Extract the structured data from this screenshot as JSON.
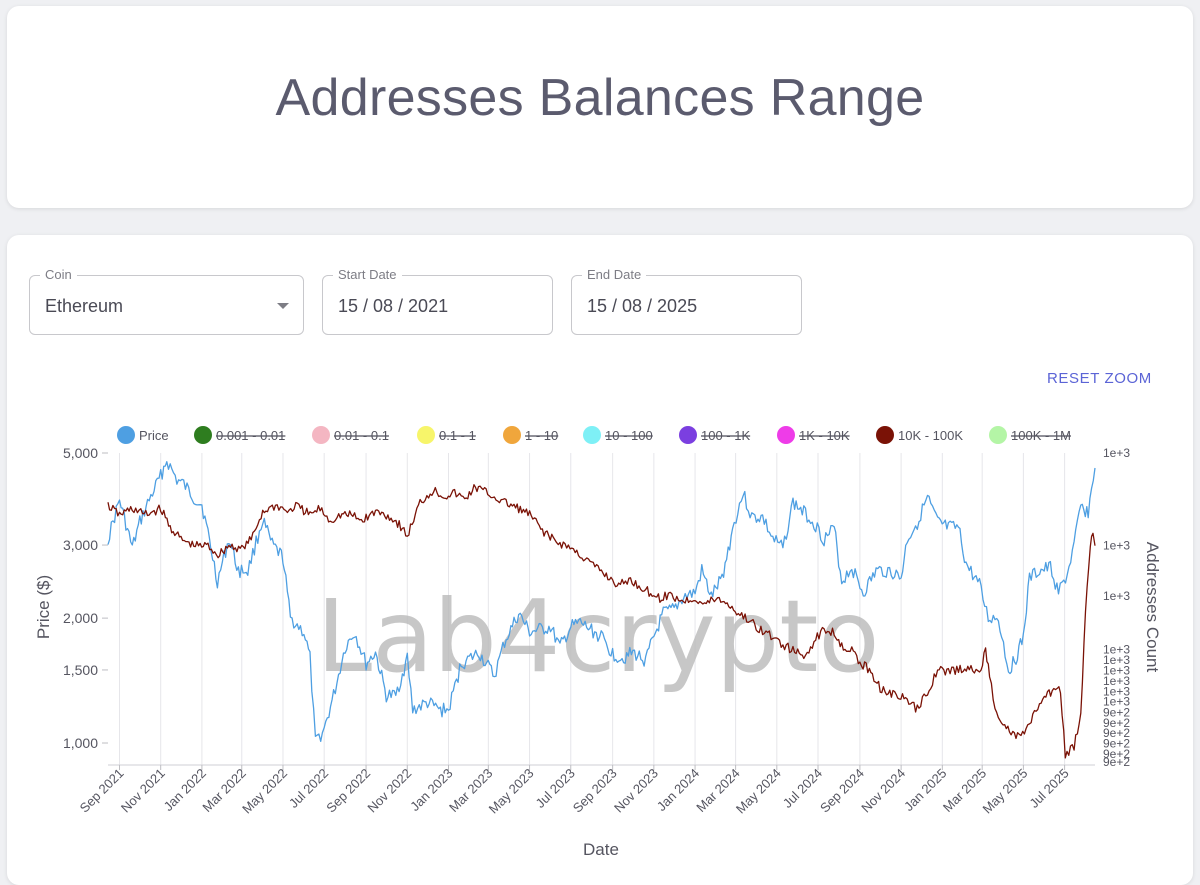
{
  "page": {
    "title": "Addresses Balances Range",
    "reset_zoom_label": "RESET ZOOM"
  },
  "filters": {
    "coin": {
      "label": "Coin",
      "value": "Ethereum"
    },
    "start_date": {
      "label": "Start Date",
      "value": "15 / 08 / 2021"
    },
    "end_date": {
      "label": "End Date",
      "value": "15 / 08 / 2025"
    }
  },
  "watermark": "Lab4crypto",
  "colors": {
    "price": "#4e9fe2",
    "holders": "#7a1206",
    "grid": "#e6e6ea",
    "reset": "#5b64d6"
  },
  "chart_data": {
    "type": "line",
    "xlabel": "Date",
    "ylabel_left": "Price ($)",
    "ylabel_right": "Addresses Count",
    "y_left_scale": "log",
    "y_left_range": [
      900,
      5000
    ],
    "y_left_ticks": [
      "5,000",
      "3,000",
      "2,000",
      "1,500",
      "1,000"
    ],
    "y_right_ticks": [
      "1e+3",
      "1e+3",
      "1e+3",
      "1e+3",
      "1e+3",
      "1e+3",
      "1e+3",
      "1e+3",
      "1e+3",
      "9e+2",
      "9e+2",
      "9e+2",
      "9e+2",
      "9e+2",
      "9e+2"
    ],
    "x_ticks": [
      "Sep 2021",
      "Nov 2021",
      "Jan 2022",
      "Mar 2022",
      "May 2022",
      "Jul 2022",
      "Sep 2022",
      "Nov 2022",
      "Jan 2023",
      "Mar 2023",
      "May 2023",
      "Jul 2023",
      "Sep 2023",
      "Nov 2023",
      "Jan 2024",
      "Mar 2024",
      "May 2024",
      "Jul 2024",
      "Sep 2024",
      "Nov 2024",
      "Jan 2025",
      "Mar 2025",
      "May 2025",
      "Jul 2025"
    ],
    "x_range": [
      "2021-08-15",
      "2025-08-15"
    ],
    "grid": "vertical",
    "legend_position": "top",
    "legend": [
      {
        "label": "Price",
        "color": "#4e9fe2",
        "hidden": false
      },
      {
        "label": "0.001 - 0.01",
        "color": "#2e7d1f",
        "hidden": true
      },
      {
        "label": "0.01 - 0.1",
        "color": "#f4b6c2",
        "hidden": true
      },
      {
        "label": "0.1 - 1",
        "color": "#f7f56a",
        "hidden": true
      },
      {
        "label": "1 - 10",
        "color": "#f0a63c",
        "hidden": true
      },
      {
        "label": "10 - 100",
        "color": "#7ef0f6",
        "hidden": true
      },
      {
        "label": "100 - 1K",
        "color": "#7b3fe0",
        "hidden": true
      },
      {
        "label": "1K - 10K",
        "color": "#ee3ce8",
        "hidden": true
      },
      {
        "label": "10K - 100K",
        "color": "#7a1206",
        "hidden": false
      },
      {
        "label": "100K - 1M",
        "color": "#b4f5a6",
        "hidden": true
      }
    ],
    "series": [
      {
        "name": "Price",
        "axis": "left",
        "points": [
          [
            "2021-08-15",
            3100
          ],
          [
            "2021-09-01",
            3850
          ],
          [
            "2021-09-20",
            2950
          ],
          [
            "2021-10-01",
            3400
          ],
          [
            "2021-10-15",
            3850
          ],
          [
            "2021-11-01",
            4400
          ],
          [
            "2021-11-10",
            4800
          ],
          [
            "2021-11-25",
            4300
          ],
          [
            "2021-12-05",
            4200
          ],
          [
            "2021-12-20",
            3900
          ],
          [
            "2022-01-01",
            3750
          ],
          [
            "2022-01-10",
            3200
          ],
          [
            "2022-01-24",
            2450
          ],
          [
            "2022-02-10",
            3100
          ],
          [
            "2022-02-24",
            2600
          ],
          [
            "2022-03-10",
            2600
          ],
          [
            "2022-04-01",
            3450
          ],
          [
            "2022-04-15",
            3000
          ],
          [
            "2022-05-01",
            2800
          ],
          [
            "2022-05-12",
            2000
          ],
          [
            "2022-06-01",
            1850
          ],
          [
            "2022-06-10",
            1600
          ],
          [
            "2022-06-18",
            1000
          ],
          [
            "2022-07-01",
            1080
          ],
          [
            "2022-07-15",
            1300
          ],
          [
            "2022-08-01",
            1700
          ],
          [
            "2022-08-15",
            1850
          ],
          [
            "2022-09-01",
            1550
          ],
          [
            "2022-09-15",
            1650
          ],
          [
            "2022-10-01",
            1300
          ],
          [
            "2022-10-15",
            1300
          ],
          [
            "2022-11-01",
            1600
          ],
          [
            "2022-11-09",
            1200
          ],
          [
            "2022-12-01",
            1250
          ],
          [
            "2022-12-20",
            1200
          ],
          [
            "2023-01-01",
            1200
          ],
          [
            "2023-01-20",
            1550
          ],
          [
            "2023-02-15",
            1650
          ],
          [
            "2023-03-10",
            1450
          ],
          [
            "2023-03-25",
            1750
          ],
          [
            "2023-04-15",
            2050
          ],
          [
            "2023-05-01",
            1850
          ],
          [
            "2023-06-01",
            1900
          ],
          [
            "2023-06-15",
            1700
          ],
          [
            "2023-07-01",
            1900
          ],
          [
            "2023-07-15",
            1950
          ],
          [
            "2023-08-15",
            1800
          ],
          [
            "2023-09-01",
            1640
          ],
          [
            "2023-09-15",
            1600
          ],
          [
            "2023-10-01",
            1650
          ],
          [
            "2023-10-20",
            1580
          ],
          [
            "2023-11-01",
            1800
          ],
          [
            "2023-11-15",
            2050
          ],
          [
            "2023-12-01",
            2100
          ],
          [
            "2023-12-15",
            2250
          ],
          [
            "2024-01-01",
            2300
          ],
          [
            "2024-01-11",
            2600
          ],
          [
            "2024-01-25",
            2250
          ],
          [
            "2024-02-10",
            2500
          ],
          [
            "2024-02-28",
            3400
          ],
          [
            "2024-03-12",
            4000
          ],
          [
            "2024-03-25",
            3500
          ],
          [
            "2024-04-10",
            3500
          ],
          [
            "2024-04-25",
            3100
          ],
          [
            "2024-05-10",
            2950
          ],
          [
            "2024-05-25",
            3800
          ],
          [
            "2024-06-10",
            3600
          ],
          [
            "2024-06-25",
            3400
          ],
          [
            "2024-07-10",
            3100
          ],
          [
            "2024-07-25",
            3300
          ],
          [
            "2024-08-05",
            2450
          ],
          [
            "2024-08-20",
            2650
          ],
          [
            "2024-09-06",
            2300
          ],
          [
            "2024-09-25",
            2600
          ],
          [
            "2024-10-15",
            2600
          ],
          [
            "2024-11-01",
            2500
          ],
          [
            "2024-11-10",
            3100
          ],
          [
            "2024-11-25",
            3400
          ],
          [
            "2024-12-10",
            3900
          ],
          [
            "2024-12-25",
            3400
          ],
          [
            "2025-01-10",
            3300
          ],
          [
            "2025-01-25",
            3300
          ],
          [
            "2025-02-05",
            2700
          ],
          [
            "2025-02-25",
            2400
          ],
          [
            "2025-03-10",
            2000
          ],
          [
            "2025-03-25",
            2000
          ],
          [
            "2025-04-09",
            1500
          ],
          [
            "2025-04-20",
            1600
          ],
          [
            "2025-05-01",
            1800
          ],
          [
            "2025-05-10",
            2500
          ],
          [
            "2025-05-25",
            2600
          ],
          [
            "2025-06-10",
            2650
          ],
          [
            "2025-06-22",
            2300
          ],
          [
            "2025-07-05",
            2550
          ],
          [
            "2025-07-15",
            3000
          ],
          [
            "2025-07-25",
            3700
          ],
          [
            "2025-08-05",
            3600
          ],
          [
            "2025-08-15",
            4600
          ]
        ]
      },
      {
        "name": "10K - 100K",
        "axis": "right",
        "points": [
          [
            "2021-08-15",
            0.83
          ],
          [
            "2021-09-01",
            0.8
          ],
          [
            "2021-09-20",
            0.82
          ],
          [
            "2021-10-10",
            0.8
          ],
          [
            "2021-11-01",
            0.82
          ],
          [
            "2021-11-15",
            0.76
          ],
          [
            "2021-12-01",
            0.72
          ],
          [
            "2021-12-20",
            0.7
          ],
          [
            "2022-01-10",
            0.7
          ],
          [
            "2022-01-25",
            0.67
          ],
          [
            "2022-02-10",
            0.7
          ],
          [
            "2022-03-01",
            0.69
          ],
          [
            "2022-03-15",
            0.72
          ],
          [
            "2022-04-01",
            0.81
          ],
          [
            "2022-04-20",
            0.83
          ],
          [
            "2022-05-10",
            0.81
          ],
          [
            "2022-05-20",
            0.83
          ],
          [
            "2022-06-10",
            0.8
          ],
          [
            "2022-06-25",
            0.82
          ],
          [
            "2022-07-10",
            0.78
          ],
          [
            "2022-07-25",
            0.8
          ],
          [
            "2022-08-10",
            0.8
          ],
          [
            "2022-08-25",
            0.78
          ],
          [
            "2022-09-15",
            0.81
          ],
          [
            "2022-10-01",
            0.8
          ],
          [
            "2022-10-20",
            0.77
          ],
          [
            "2022-11-01",
            0.73
          ],
          [
            "2022-11-20",
            0.84
          ],
          [
            "2022-12-10",
            0.88
          ],
          [
            "2022-12-25",
            0.86
          ],
          [
            "2023-01-10",
            0.87
          ],
          [
            "2023-01-25",
            0.85
          ],
          [
            "2023-02-10",
            0.89
          ],
          [
            "2023-02-28",
            0.87
          ],
          [
            "2023-03-15",
            0.85
          ],
          [
            "2023-03-25",
            0.84
          ],
          [
            "2023-04-15",
            0.82
          ],
          [
            "2023-05-01",
            0.8
          ],
          [
            "2023-05-20",
            0.75
          ],
          [
            "2023-06-10",
            0.71
          ],
          [
            "2023-06-25",
            0.7
          ],
          [
            "2023-07-15",
            0.67
          ],
          [
            "2023-08-01",
            0.64
          ],
          [
            "2023-08-25",
            0.6
          ],
          [
            "2023-09-10",
            0.57
          ],
          [
            "2023-09-25",
            0.59
          ],
          [
            "2023-10-10",
            0.57
          ],
          [
            "2023-10-25",
            0.55
          ],
          [
            "2023-11-10",
            0.53
          ],
          [
            "2023-11-25",
            0.54
          ],
          [
            "2023-12-15",
            0.52
          ],
          [
            "2024-01-01",
            0.53
          ],
          [
            "2024-01-15",
            0.51
          ],
          [
            "2024-02-01",
            0.53
          ],
          [
            "2024-02-20",
            0.51
          ],
          [
            "2024-03-05",
            0.48
          ],
          [
            "2024-03-20",
            0.46
          ],
          [
            "2024-04-05",
            0.43
          ],
          [
            "2024-04-20",
            0.41
          ],
          [
            "2024-05-10",
            0.38
          ],
          [
            "2024-05-25",
            0.36
          ],
          [
            "2024-06-10",
            0.34
          ],
          [
            "2024-06-25",
            0.39
          ],
          [
            "2024-07-10",
            0.43
          ],
          [
            "2024-07-25",
            0.42
          ],
          [
            "2024-08-05",
            0.38
          ],
          [
            "2024-08-20",
            0.36
          ],
          [
            "2024-09-01",
            0.32
          ],
          [
            "2024-09-15",
            0.3
          ],
          [
            "2024-10-01",
            0.24
          ],
          [
            "2024-10-20",
            0.22
          ],
          [
            "2024-11-10",
            0.2
          ],
          [
            "2024-11-25",
            0.17
          ],
          [
            "2024-12-15",
            0.25
          ],
          [
            "2024-12-25",
            0.3
          ],
          [
            "2025-01-10",
            0.29
          ],
          [
            "2025-01-25",
            0.3
          ],
          [
            "2025-02-10",
            0.3
          ],
          [
            "2025-02-25",
            0.29
          ],
          [
            "2025-03-06",
            0.36
          ],
          [
            "2025-03-12",
            0.28
          ],
          [
            "2025-03-20",
            0.18
          ],
          [
            "2025-04-01",
            0.12
          ],
          [
            "2025-04-20",
            0.08
          ],
          [
            "2025-05-05",
            0.1
          ],
          [
            "2025-05-20",
            0.17
          ],
          [
            "2025-06-01",
            0.2
          ],
          [
            "2025-06-15",
            0.24
          ],
          [
            "2025-06-25",
            0.23
          ],
          [
            "2025-07-02",
            0.02
          ],
          [
            "2025-07-15",
            0.05
          ],
          [
            "2025-07-25",
            0.15
          ],
          [
            "2025-08-01",
            0.5
          ],
          [
            "2025-08-08",
            0.7
          ],
          [
            "2025-08-12",
            0.75
          ],
          [
            "2025-08-15",
            0.7
          ]
        ]
      }
    ]
  }
}
